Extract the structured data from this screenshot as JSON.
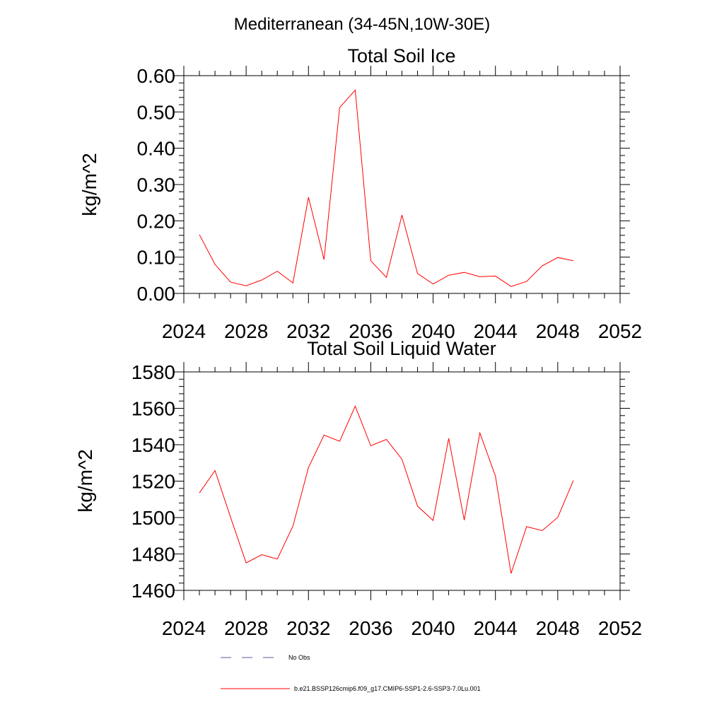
{
  "main_title": "Mediterranean (34-45N,10W-30E)",
  "chart_data": [
    {
      "type": "line",
      "title": "Total Soil Ice",
      "xlabel": "",
      "ylabel": "kg/m^2",
      "xlim": [
        2024,
        2052
      ],
      "ylim": [
        0.0,
        0.6
      ],
      "x_ticks": [
        "2024",
        "2028",
        "2032",
        "2036",
        "2040",
        "2044",
        "2048",
        "2052"
      ],
      "y_ticks": [
        "0.00",
        "0.10",
        "0.20",
        "0.30",
        "0.40",
        "0.50",
        "0.60"
      ],
      "x": [
        2025,
        2026,
        2027,
        2028,
        2029,
        2030,
        2031,
        2032,
        2033,
        2034,
        2035,
        2036,
        2037,
        2038,
        2039,
        2040,
        2041,
        2042,
        2043,
        2044,
        2045,
        2046,
        2047,
        2048,
        2049
      ],
      "series": [
        {
          "color": "#ff0000",
          "values": [
            0.162,
            0.08,
            0.031,
            0.021,
            0.037,
            0.061,
            0.029,
            0.265,
            0.093,
            0.512,
            0.56,
            0.09,
            0.044,
            0.216,
            0.055,
            0.026,
            0.05,
            0.058,
            0.046,
            0.048,
            0.019,
            0.033,
            0.076,
            0.099,
            0.09
          ]
        }
      ]
    },
    {
      "type": "line",
      "title": "Total Soil Liquid Water",
      "xlabel": "",
      "ylabel": "kg/m^2",
      "xlim": [
        2024,
        2052
      ],
      "ylim": [
        1460,
        1580
      ],
      "x_ticks": [
        "2024",
        "2028",
        "2032",
        "2036",
        "2040",
        "2044",
        "2048",
        "2052"
      ],
      "y_ticks": [
        "1460",
        "1480",
        "1500",
        "1520",
        "1540",
        "1560",
        "1580"
      ],
      "x": [
        2025,
        2026,
        2027,
        2028,
        2029,
        2030,
        2031,
        2032,
        2033,
        2034,
        2035,
        2036,
        2037,
        2038,
        2039,
        2040,
        2041,
        2042,
        2043,
        2044,
        2045,
        2046,
        2047,
        2048,
        2049
      ],
      "series": [
        {
          "color": "#ff0000",
          "values": [
            1513.5,
            1525.8,
            1500.1,
            1475.1,
            1479.6,
            1477.2,
            1495.3,
            1527.5,
            1545.3,
            1541.9,
            1561.2,
            1539.4,
            1542.9,
            1532.0,
            1506.3,
            1498.4,
            1543.5,
            1498.6,
            1546.5,
            1522.8,
            1469.3,
            1495.0,
            1492.8,
            1500.1,
            1520.3
          ]
        }
      ]
    }
  ],
  "legend": {
    "items": [
      {
        "label": "No Obs",
        "color": "#5a5a9a",
        "dash": "dashed"
      },
      {
        "label": "b.e21.BSSP126cmip6.f09_g17.CMIP6-SSP1-2.6-SSP3-7.0Lu.001",
        "color": "#ff0000",
        "dash": "solid"
      }
    ]
  }
}
